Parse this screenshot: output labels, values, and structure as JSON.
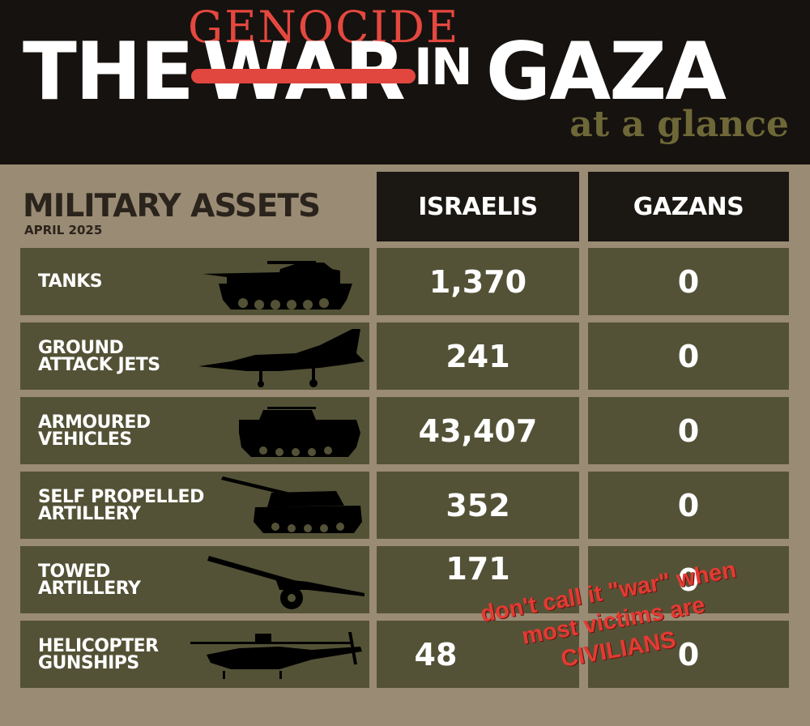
{
  "header": {
    "title_the": "THE",
    "title_war": "WAR",
    "title_in": "IN",
    "title_gaza": "GAZA",
    "overwrite": "GENOCIDE",
    "subtitle": "at a glance"
  },
  "table": {
    "heading": "MILITARY ASSETS",
    "date": "APRIL 2025",
    "columns": [
      "ISRAELIS",
      "GAZANS"
    ],
    "rows": [
      {
        "label": "TANKS",
        "icon": "tank-icon",
        "israelis": "1,370",
        "gazans": "0"
      },
      {
        "label": "GROUND\nATTACK JETS",
        "icon": "jet-icon",
        "israelis": "241",
        "gazans": "0"
      },
      {
        "label": "ARMOURED\nVEHICLES",
        "icon": "armoured-vehicle-icon",
        "israelis": "43,407",
        "gazans": "0"
      },
      {
        "label": "SELF PROPELLED\nARTILLERY",
        "icon": "self-propelled-artillery-icon",
        "israelis": "352",
        "gazans": "0"
      },
      {
        "label": "TOWED\nARTILLERY",
        "icon": "towed-artillery-icon",
        "israelis": "171",
        "gazans": "0"
      },
      {
        "label": "HELICOPTER\nGUNSHIPS",
        "icon": "helicopter-icon",
        "israelis": "48",
        "gazans": "0"
      }
    ]
  },
  "annotation": {
    "lines": [
      "don't call it \"war\" when",
      "most victims are",
      "CIVILIANS"
    ]
  },
  "colors": {
    "header_bg": "#16120f",
    "page_bg": "#9a8b74",
    "cell_bg": "#545236",
    "accent_red": "#e1463f",
    "subtitle_olive": "#6e6838"
  }
}
